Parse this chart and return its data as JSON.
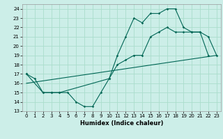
{
  "xlabel": "Humidex (Indice chaleur)",
  "background_color": "#cceee8",
  "grid_color": "#aaddcc",
  "line_color": "#006655",
  "xlim": [
    -0.5,
    23.5
  ],
  "ylim": [
    13,
    24.5
  ],
  "yticks": [
    13,
    14,
    15,
    16,
    17,
    18,
    19,
    20,
    21,
    22,
    23,
    24
  ],
  "xticks": [
    0,
    1,
    2,
    3,
    4,
    5,
    6,
    7,
    8,
    9,
    10,
    11,
    12,
    13,
    14,
    15,
    16,
    17,
    18,
    19,
    20,
    21,
    22,
    23
  ],
  "curve1_x": [
    0,
    1,
    2,
    3,
    4,
    5,
    6,
    7,
    8,
    9,
    10,
    11,
    12,
    13,
    14,
    15,
    16,
    17,
    18,
    19,
    20,
    21,
    22
  ],
  "curve1_y": [
    17,
    16.5,
    15,
    15,
    15,
    15,
    14,
    13.5,
    13.5,
    15,
    16.5,
    19,
    21,
    23,
    22.5,
    23.5,
    23.5,
    24,
    24,
    22,
    21.5,
    21.5,
    19
  ],
  "curve2_x": [
    0,
    2,
    3,
    4,
    10,
    11,
    12,
    13,
    14,
    15,
    16,
    17,
    18,
    19,
    20,
    21,
    22,
    23
  ],
  "curve2_y": [
    17,
    15,
    15,
    15,
    16.5,
    18,
    18.5,
    19,
    19,
    21,
    21.5,
    22,
    21.5,
    21.5,
    21.5,
    21.5,
    21,
    19
  ],
  "curve3_x": [
    0,
    23
  ],
  "curve3_y": [
    16,
    19
  ]
}
